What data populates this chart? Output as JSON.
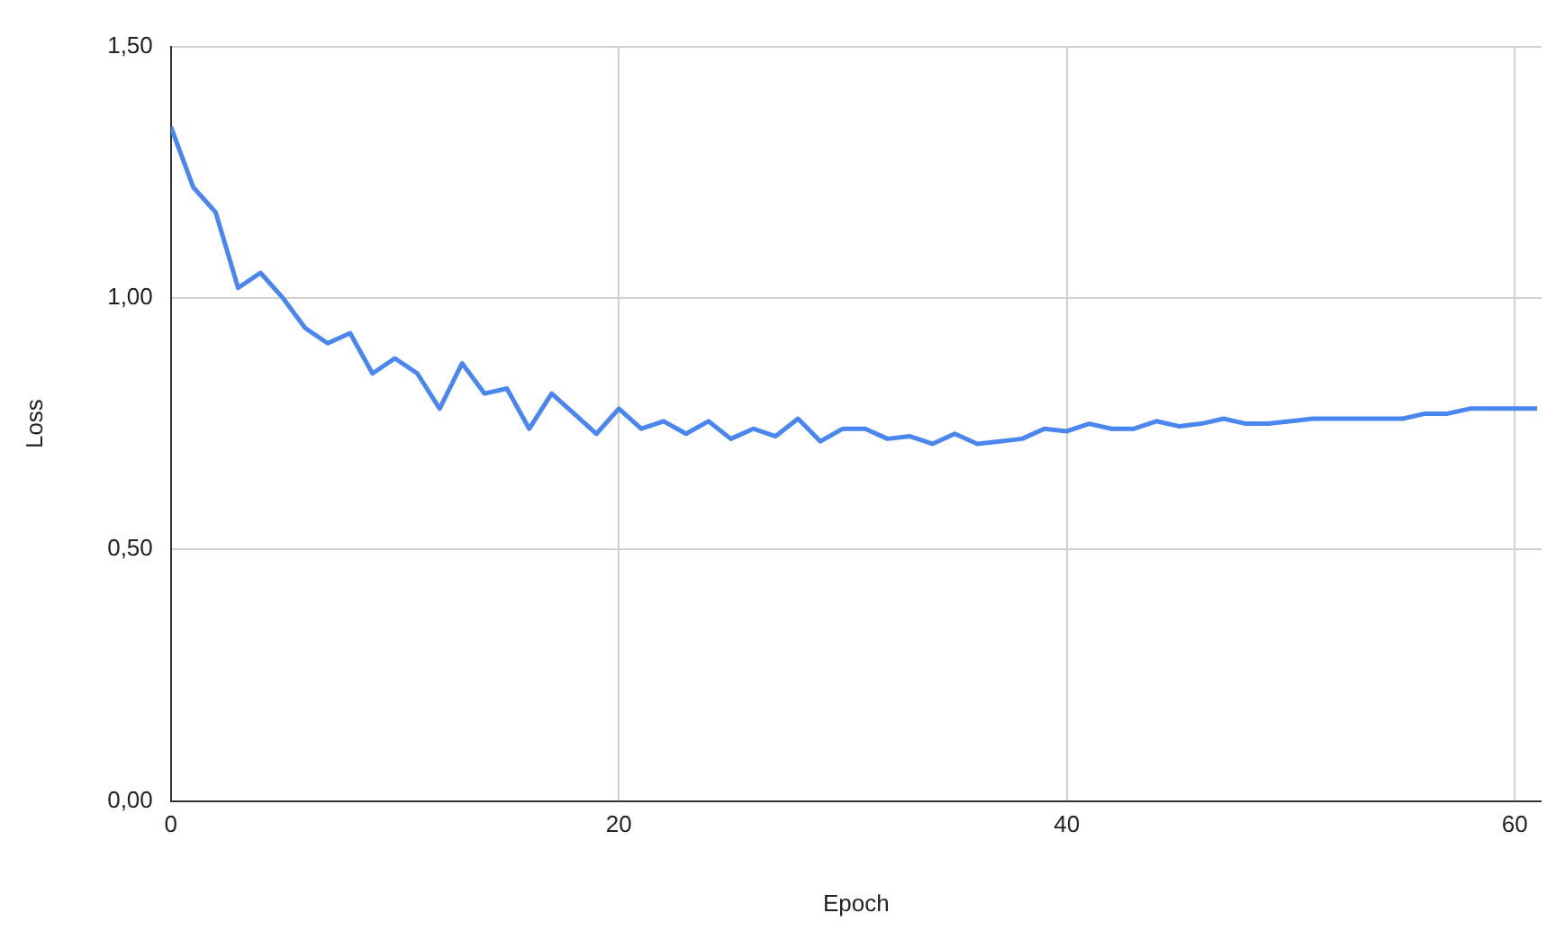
{
  "chart_data": {
    "type": "line",
    "xlabel": "Epoch",
    "ylabel": "Loss",
    "x": [
      0,
      1,
      2,
      3,
      4,
      5,
      6,
      7,
      8,
      9,
      10,
      11,
      12,
      13,
      14,
      15,
      16,
      17,
      18,
      19,
      20,
      21,
      22,
      23,
      24,
      25,
      26,
      27,
      28,
      29,
      30,
      31,
      32,
      33,
      34,
      35,
      36,
      37,
      38,
      39,
      40,
      41,
      42,
      43,
      44,
      45,
      46,
      47,
      48,
      49,
      50,
      51,
      52,
      53,
      54,
      55,
      56,
      57,
      58,
      59,
      60,
      61
    ],
    "series": [
      {
        "color": "#4a86f0",
        "values": [
          1.34,
          1.22,
          1.17,
          1.02,
          1.05,
          1.0,
          0.94,
          0.91,
          0.93,
          0.85,
          0.88,
          0.85,
          0.78,
          0.87,
          0.81,
          0.82,
          0.74,
          0.81,
          0.77,
          0.73,
          0.78,
          0.74,
          0.755,
          0.73,
          0.755,
          0.72,
          0.74,
          0.725,
          0.76,
          0.715,
          0.74,
          0.74,
          0.72,
          0.725,
          0.71,
          0.73,
          0.71,
          0.715,
          0.72,
          0.74,
          0.735,
          0.75,
          0.74,
          0.74,
          0.755,
          0.745,
          0.75,
          0.76,
          0.75,
          0.75,
          0.755,
          0.76,
          0.76,
          0.76,
          0.76,
          0.76,
          0.77,
          0.77,
          0.78,
          0.78,
          0.78,
          0.78
        ]
      }
    ],
    "xlim": [
      0,
      61.2
    ],
    "xticks": [
      0,
      20,
      40,
      60
    ],
    "ylim": [
      0,
      1.5
    ],
    "yticks": [
      {
        "value": 0,
        "label": "0,00"
      },
      {
        "value": 0.5,
        "label": "0,50"
      },
      {
        "value": 1,
        "label": "1,00"
      },
      {
        "value": 1.5,
        "label": "1,50"
      }
    ],
    "grid": true,
    "legend": false,
    "marker": "none",
    "line_style": "solid"
  }
}
